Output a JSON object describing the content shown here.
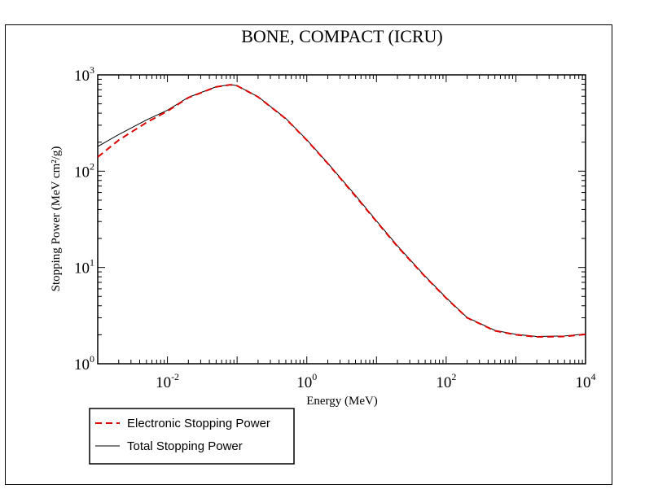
{
  "chart_data": {
    "type": "line",
    "title": "BONE, COMPACT (ICRU)",
    "xlabel": "Energy (MeV)",
    "ylabel": "Stopping Power (MeV cm²/g)",
    "xscale": "log",
    "yscale": "log",
    "xlim": [
      0.001,
      10000
    ],
    "ylim": [
      1,
      1000
    ],
    "x_ticks": [
      {
        "base": "10",
        "exp": "-2",
        "value": 0.01
      },
      {
        "base": "10",
        "exp": "0",
        "value": 1
      },
      {
        "base": "10",
        "exp": "2",
        "value": 100
      },
      {
        "base": "10",
        "exp": "4",
        "value": 10000
      }
    ],
    "y_ticks": [
      {
        "base": "10",
        "exp": "0",
        "value": 1
      },
      {
        "base": "10",
        "exp": "1",
        "value": 10
      },
      {
        "base": "10",
        "exp": "2",
        "value": 100
      },
      {
        "base": "10",
        "exp": "3",
        "value": 1000
      }
    ],
    "legend_position": "bottom-left, below plot",
    "series": [
      {
        "name": "Electronic Stopping Power",
        "color": "#dd0000",
        "style": "dashed",
        "x": [
          0.001,
          0.002,
          0.005,
          0.01,
          0.02,
          0.05,
          0.08,
          0.1,
          0.2,
          0.5,
          1,
          2,
          5,
          10,
          20,
          50,
          100,
          200,
          500,
          1000,
          2000,
          5000,
          10000
        ],
        "y": [
          140,
          210,
          320,
          420,
          580,
          750,
          790,
          770,
          590,
          350,
          210,
          120,
          55,
          30,
          16.5,
          8.0,
          4.8,
          3.0,
          2.2,
          2.0,
          1.9,
          1.92,
          2.02
        ]
      },
      {
        "name": "Total Stopping Power",
        "color": "#000000",
        "style": "solid",
        "x": [
          0.001,
          0.002,
          0.005,
          0.01,
          0.02,
          0.05,
          0.08,
          0.1,
          0.2,
          0.5,
          1,
          2,
          5,
          10,
          20,
          50,
          100,
          200,
          500,
          1000,
          2000,
          5000,
          10000
        ],
        "y": [
          180,
          240,
          340,
          430,
          585,
          752,
          792,
          772,
          592,
          352,
          212,
          121,
          56,
          30.5,
          16.8,
          8.1,
          4.85,
          3.02,
          2.22,
          2.02,
          1.92,
          1.94,
          2.04
        ]
      }
    ]
  }
}
